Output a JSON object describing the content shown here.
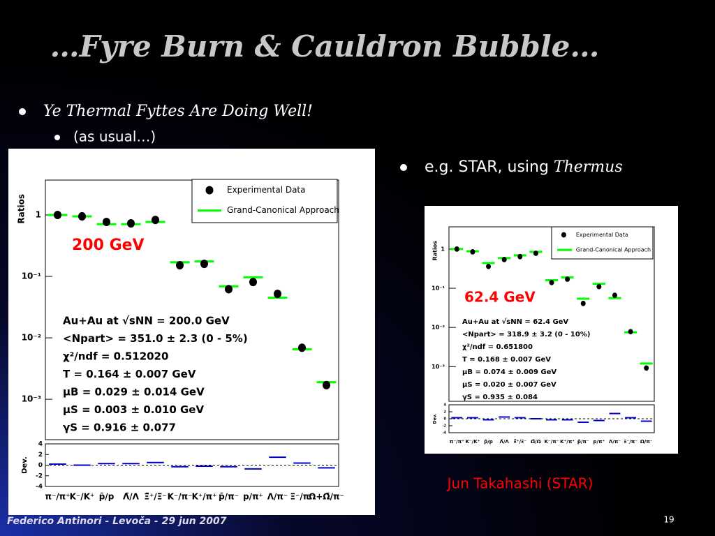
{
  "slide": {
    "title": "…Fyre Burn & Cauldron Bubble…",
    "bullet": "Ye Thermal Fyttes Are Doing Well!",
    "sub_bullet": "(as usual…)",
    "right_bullet": "e.g. STAR, using ",
    "right_bullet_tool": "Thermus",
    "credit": "Jun Takahashi (STAR)",
    "footer": "Federico Antinori - Levoča - 29 jun 2007",
    "page_number": "19"
  },
  "chart_data": [
    {
      "type": "scatter",
      "ylabel": "Ratios",
      "log_y": true,
      "energy_label": "200 GeV",
      "categories": [
        "π⁻/π⁺",
        "K⁻/K⁺",
        "p̄/p",
        "Λ̄/Λ",
        "Ξ̄⁺/Ξ⁻",
        "K⁻/π⁻",
        "K⁺/π⁺",
        "p̄/π⁻",
        "p/π⁺",
        "Λ/π⁻",
        "Ξ⁻/π⁻",
        "Ω+Ω̄/π⁻"
      ],
      "ylim": [
        0.00022,
        3.7
      ],
      "yticks": [
        {
          "value": 0.001,
          "label": "10⁻³"
        },
        {
          "value": 0.01,
          "label": "10⁻²"
        },
        {
          "value": 0.1,
          "label": "10⁻¹"
        },
        1
      ],
      "series": [
        {
          "name": "Experimental Data",
          "color": "#000000",
          "values": [
            1.0,
            0.95,
            0.77,
            0.73,
            0.83,
            0.152,
            0.16,
            0.062,
            0.081,
            0.052,
            0.0069,
            0.0017
          ]
        },
        {
          "name": "Grand-Canonical Approach",
          "color": "#00ff00",
          "values": [
            1.0,
            0.95,
            0.71,
            0.71,
            0.77,
            0.17,
            0.175,
            0.069,
            0.097,
            0.045,
            0.0065,
            0.0019
          ]
        }
      ],
      "fit_text": [
        "Au+Au at √sNN = 200.0 GeV",
        "<Npart> = 351.0 ± 2.3 (0 - 5%)",
        "χ²/ndf = 0.512020",
        "T = 0.164 ± 0.007 GeV",
        "μB = 0.029 ± 0.014 GeV",
        "μS = 0.003 ± 0.010 GeV",
        "γS = 0.916 ± 0.077"
      ],
      "deviation": {
        "label": "Dev.",
        "color": "#0000cc",
        "ylim": [
          -4,
          4
        ],
        "yticks": [
          -4,
          -2,
          0,
          2,
          4
        ],
        "values": [
          0.2,
          0,
          0.3,
          0.3,
          0.5,
          -0.3,
          -0.2,
          -0.3,
          -0.7,
          1.5,
          0.4,
          -0.5
        ]
      }
    },
    {
      "type": "scatter",
      "ylabel": "Ratios",
      "log_y": true,
      "energy_label": "62.4 GeV",
      "categories": [
        "π⁻/π⁺",
        "K⁻/K⁺",
        "p̄/p",
        "Λ̄/Λ",
        "Ξ̄⁺/Ξ⁻",
        "Ω̄/Ω",
        "K⁻/π⁻",
        "K⁺/π⁺",
        "p̄/π⁻",
        "p/π⁺",
        "Λ/π⁻",
        "Ξ⁻/π⁻",
        "Ω/π⁻"
      ],
      "ylim": [
        0.00013,
        3.7
      ],
      "yticks": [
        {
          "value": 0.001,
          "label": "10⁻³"
        },
        {
          "value": 0.01,
          "label": "10⁻²"
        },
        {
          "value": 0.1,
          "label": "10⁻¹"
        },
        1
      ],
      "series": [
        {
          "name": "Experimental Data",
          "color": "#000000",
          "values": [
            1.0,
            0.85,
            0.36,
            0.54,
            0.64,
            0.78,
            0.14,
            0.17,
            0.041,
            0.11,
            0.066,
            0.0078,
            0.00092
          ]
        },
        {
          "name": "Grand-Canonical Approach",
          "color": "#00ff00",
          "values": [
            1.0,
            0.88,
            0.44,
            0.59,
            0.69,
            0.85,
            0.16,
            0.19,
            0.054,
            0.13,
            0.056,
            0.0075,
            0.0012
          ]
        }
      ],
      "fit_text": [
        "Au+Au at √sNN = 62.4 GeV",
        "<Npart> = 318.9 ± 3.2 (0 - 10%)",
        "χ²/ndf = 0.651800",
        "T = 0.168 ± 0.007 GeV",
        "μB = 0.074 ± 0.009 GeV",
        "μS = 0.020 ± 0.007 GeV",
        "γS = 0.935 ± 0.084"
      ],
      "deviation": {
        "label": "Dev.",
        "color": "#0000cc",
        "ylim": [
          -4,
          4
        ],
        "yticks": [
          -4,
          -2,
          0,
          2,
          4
        ],
        "values": [
          0.3,
          0.3,
          -0.3,
          0.5,
          0.3,
          0,
          -0.3,
          -0.3,
          -1.0,
          -0.5,
          1.5,
          0.3,
          -0.7
        ]
      }
    }
  ]
}
